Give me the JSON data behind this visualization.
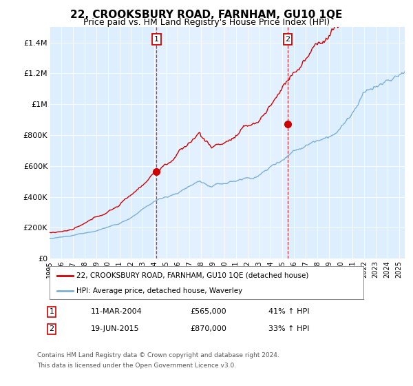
{
  "title": "22, CROOKSBURY ROAD, FARNHAM, GU10 1QE",
  "subtitle": "Price paid vs. HM Land Registry's House Price Index (HPI)",
  "sale1_date": 2004.19,
  "sale1_price": 565000,
  "sale1_label": "1",
  "sale2_date": 2015.46,
  "sale2_price": 870000,
  "sale2_label": "2",
  "legend_line1": "22, CROOKSBURY ROAD, FARNHAM, GU10 1QE (detached house)",
  "legend_line2": "HPI: Average price, detached house, Waverley",
  "footnote1": "Contains HM Land Registry data © Crown copyright and database right 2024.",
  "footnote2": "This data is licensed under the Open Government Licence v3.0.",
  "line_color_red": "#cc0000",
  "line_color_blue": "#7ab0d4",
  "shade_color": "#ddeeff",
  "background_color": "#ddeeff",
  "xlim_left": 1995.0,
  "xlim_right": 2025.5,
  "ylim_bottom": 0,
  "ylim_top": 1500000,
  "yticks": [
    0,
    200000,
    400000,
    600000,
    800000,
    1000000,
    1200000,
    1400000
  ],
  "ytick_labels": [
    "£0",
    "£200K",
    "£400K",
    "£600K",
    "£800K",
    "£1M",
    "£1.2M",
    "£1.4M"
  ],
  "xticks": [
    1995,
    1996,
    1997,
    1998,
    1999,
    2000,
    2001,
    2002,
    2003,
    2004,
    2005,
    2006,
    2007,
    2008,
    2009,
    2010,
    2011,
    2012,
    2013,
    2014,
    2015,
    2016,
    2017,
    2018,
    2019,
    2020,
    2021,
    2022,
    2023,
    2024,
    2025
  ],
  "row1_date": "11-MAR-2004",
  "row1_price": "£565,000",
  "row1_hpi": "41% ↑ HPI",
  "row2_date": "19-JUN-2015",
  "row2_price": "£870,000",
  "row2_hpi": "33% ↑ HPI"
}
